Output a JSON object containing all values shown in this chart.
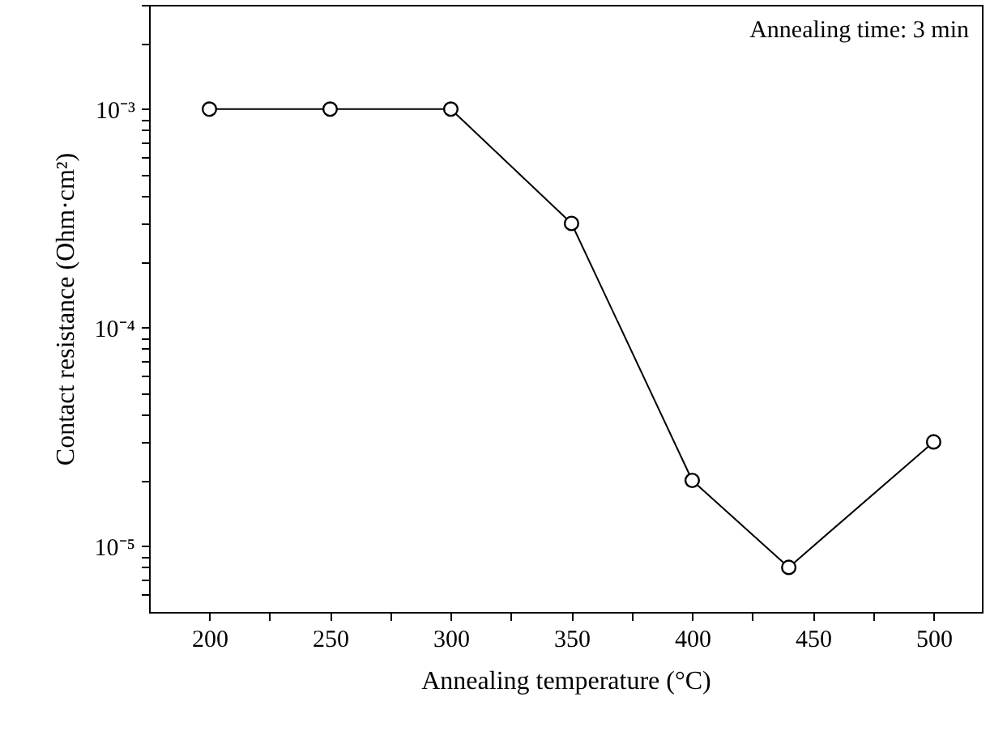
{
  "chart_data": {
    "type": "line",
    "xlabel": "Annealing temperature (°C)",
    "ylabel": "Contact resistance (Ohm·cm²)",
    "annotations": [
      "Annealing time: 3 min"
    ],
    "x": [
      200,
      250,
      300,
      350,
      400,
      440,
      500
    ],
    "series": [
      {
        "color": "#000000",
        "values": [
          0.001,
          0.001,
          0.001,
          0.0003,
          2e-05,
          8e-06,
          3e-05
        ]
      }
    ],
    "xlim": [
      175,
      520
    ],
    "xticks": [
      200,
      {
        "value": 225,
        "label": null
      },
      250,
      {
        "value": 275,
        "label": null
      },
      300,
      {
        "value": 325,
        "label": null
      },
      350,
      {
        "value": 375,
        "label": null
      },
      400,
      {
        "value": 425,
        "label": null
      },
      450,
      {
        "value": 475,
        "label": null
      },
      500
    ],
    "ylim": [
      5e-06,
      0.003
    ],
    "log": "y",
    "yticks": [
      {
        "value": 6e-06,
        "label": null
      },
      {
        "value": 7e-06,
        "label": null
      },
      {
        "value": 8e-06,
        "label": null
      },
      {
        "value": 9e-06,
        "label": null
      },
      {
        "value": 1e-05,
        "label": "10⁻⁵"
      },
      {
        "value": 2e-05,
        "label": null
      },
      {
        "value": 3e-05,
        "label": null
      },
      {
        "value": 4e-05,
        "label": null
      },
      {
        "value": 5e-05,
        "label": null
      },
      {
        "value": 6e-05,
        "label": null
      },
      {
        "value": 7e-05,
        "label": null
      },
      {
        "value": 8e-05,
        "label": null
      },
      {
        "value": 9e-05,
        "label": null
      },
      {
        "value": 0.0001,
        "label": "10⁻⁴"
      },
      {
        "value": 0.0002,
        "label": null
      },
      {
        "value": 0.0003,
        "label": null
      },
      {
        "value": 0.0004,
        "label": null
      },
      {
        "value": 0.0005,
        "label": null
      },
      {
        "value": 0.0006,
        "label": null
      },
      {
        "value": 0.0007,
        "label": null
      },
      {
        "value": 0.0008,
        "label": null
      },
      {
        "value": 0.0009,
        "label": null
      },
      {
        "value": 0.001,
        "label": "10⁻³"
      },
      {
        "value": 0.002,
        "label": null
      },
      {
        "value": 0.003,
        "label": null
      }
    ],
    "marker": "circle",
    "line_style": "solid",
    "grid": false
  }
}
